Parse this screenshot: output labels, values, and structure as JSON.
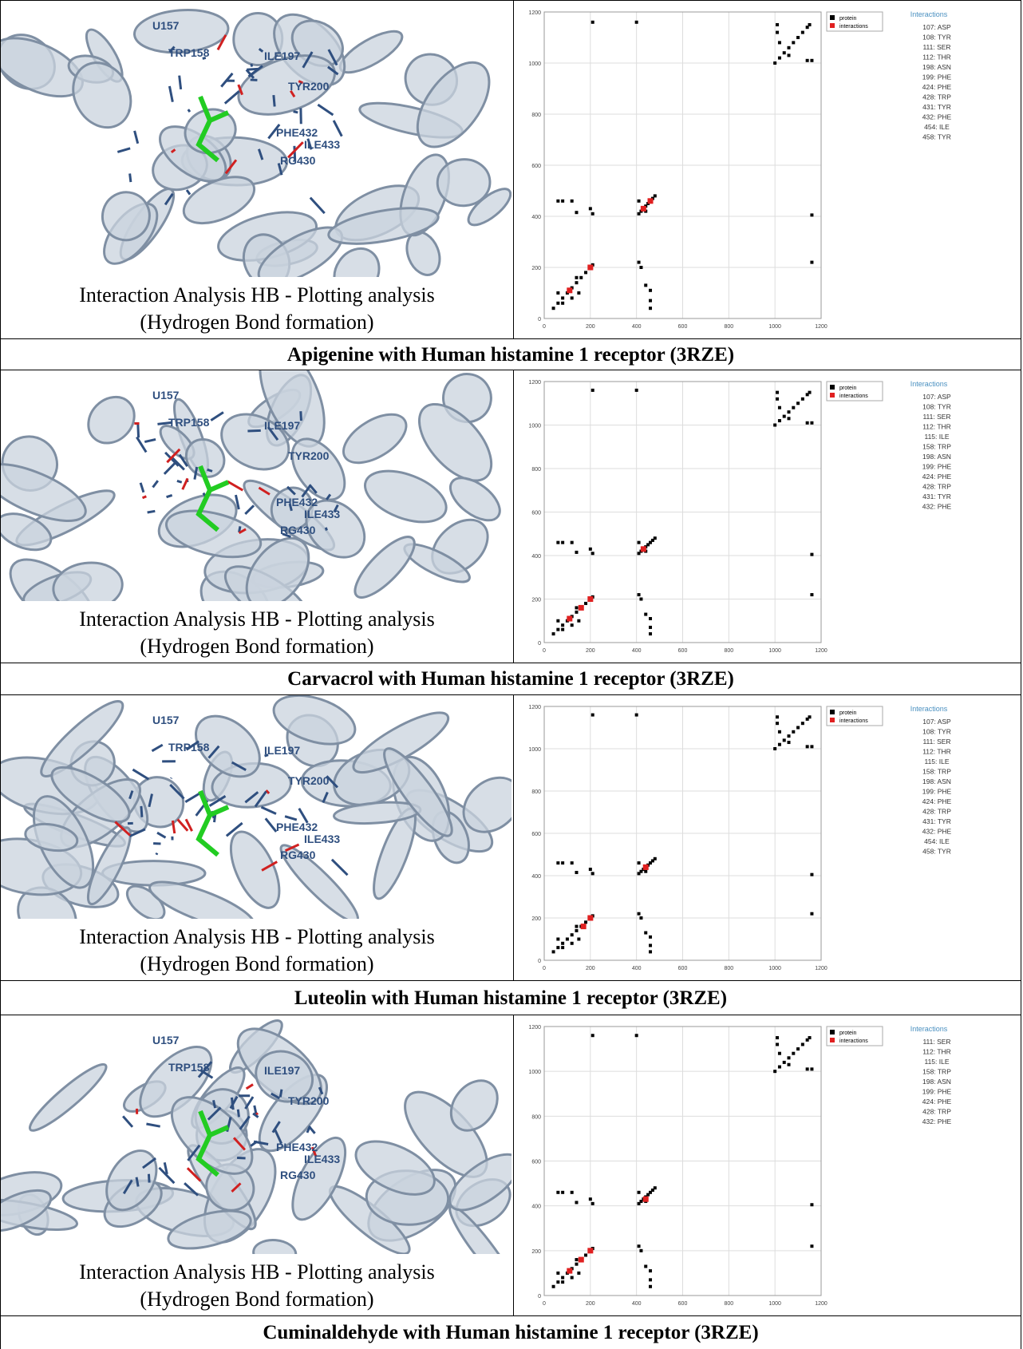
{
  "axes": {
    "xlim": [
      0,
      1200
    ],
    "ylim": [
      0,
      1200
    ],
    "xticks": [
      0,
      200,
      400,
      600,
      800,
      1000,
      1200
    ],
    "yticks": [
      0,
      200,
      400,
      600,
      800,
      1000,
      1200
    ]
  },
  "molecule_labels": [
    "U157",
    "TRP158",
    "ILE197",
    "TYR200",
    "PHE432",
    "ILE433",
    "RG430"
  ],
  "rows": [
    {
      "caption": [
        "Interaction Analysis HB - Plotting analysis",
        "(Hydrogen Bond formation)"
      ],
      "title": "Apigenine with Human histamine 1 receptor (3RZE)",
      "plot": {
        "interactions_title": "Interactions",
        "interactions": [
          "107: ASP",
          "108: TYR",
          "111: SER",
          "112: THR",
          "198: ASN",
          "199: PHE",
          "424: PHE",
          "428: TRP",
          "431: TYR",
          "432: PHE",
          "454: ILE",
          "458: TYR"
        ],
        "series": [
          {
            "name": "protein",
            "color": "#000000",
            "x": [
              40,
              60,
              80,
              100,
              120,
              140,
              160,
              180,
              200,
              210,
              60,
              80,
              120,
              140,
              150,
              410,
              420,
              430,
              440,
              450,
              460,
              470,
              480,
              1000,
              1020,
              1040,
              1060,
              1080,
              1100,
              1120,
              1140,
              1150,
              1010,
              1010,
              1140,
              1160,
              60,
              80,
              120,
              140,
              200,
              210,
              410,
              420,
              440,
              460,
              460,
              460,
              1160,
              1160,
              210,
              400,
              410,
              440,
              1020,
              1060
            ],
            "y": [
              40,
              60,
              80,
              100,
              120,
              140,
              160,
              180,
              200,
              210,
              100,
              60,
              80,
              160,
              100,
              410,
              420,
              430,
              440,
              450,
              460,
              470,
              480,
              1000,
              1020,
              1040,
              1060,
              1080,
              1100,
              1120,
              1140,
              1150,
              1150,
              1120,
              1010,
              1010,
              460,
              460,
              460,
              415,
              430,
              410,
              220,
              200,
              130,
              110,
              70,
              40,
              405,
              220,
              1160,
              1160,
              460,
              420,
              1080,
              1030
            ]
          },
          {
            "name": "interactions",
            "color": "#e02020",
            "x": [
              110,
              200,
              430,
              460
            ],
            "y": [
              110,
              200,
              430,
              460
            ]
          }
        ]
      }
    },
    {
      "caption": [
        "Interaction Analysis HB - Plotting analysis",
        "(Hydrogen Bond formation)"
      ],
      "title": "Carvacrol with Human histamine 1 receptor (3RZE)",
      "plot": {
        "interactions_title": "Interactions",
        "interactions": [
          "107: ASP",
          "108: TYR",
          "111: SER",
          "112: THR",
          "115: ILE",
          "158: TRP",
          "198: ASN",
          "199: PHE",
          "424: PHE",
          "428: TRP",
          "431: TYR",
          "432: PHE"
        ],
        "series": [
          {
            "name": "protein",
            "color": "#000000",
            "x": [
              40,
              60,
              80,
              100,
              120,
              140,
              160,
              180,
              200,
              210,
              60,
              80,
              120,
              140,
              150,
              410,
              420,
              430,
              440,
              450,
              460,
              470,
              480,
              1000,
              1020,
              1040,
              1060,
              1080,
              1100,
              1120,
              1140,
              1150,
              1010,
              1010,
              1140,
              1160,
              60,
              80,
              120,
              140,
              200,
              210,
              410,
              420,
              440,
              460,
              460,
              460,
              1160,
              1160,
              210,
              400,
              410,
              440,
              1020,
              1060
            ],
            "y": [
              40,
              60,
              80,
              100,
              120,
              140,
              160,
              180,
              200,
              210,
              100,
              60,
              80,
              160,
              100,
              410,
              420,
              430,
              440,
              450,
              460,
              470,
              480,
              1000,
              1020,
              1040,
              1060,
              1080,
              1100,
              1120,
              1140,
              1150,
              1150,
              1120,
              1010,
              1010,
              460,
              460,
              460,
              415,
              430,
              410,
              220,
              200,
              130,
              110,
              70,
              40,
              405,
              220,
              1160,
              1160,
              460,
              420,
              1080,
              1030
            ]
          },
          {
            "name": "interactions",
            "color": "#e02020",
            "x": [
              110,
              160,
              200,
              430
            ],
            "y": [
              110,
              160,
              200,
              430
            ]
          }
        ]
      }
    },
    {
      "caption": [
        "Interaction Analysis HB - Plotting analysis",
        "(Hydrogen Bond formation)"
      ],
      "title": "Luteolin with Human histamine 1 receptor (3RZE)",
      "plot": {
        "interactions_title": "Interactions",
        "interactions": [
          "107: ASP",
          "108: TYR",
          "111: SER",
          "112: THR",
          "115: ILE",
          "158: TRP",
          "198: ASN",
          "199: PHE",
          "424: PHE",
          "428: TRP",
          "431: TYR",
          "432: PHE",
          "454: ILE",
          "458: TYR"
        ],
        "series": [
          {
            "name": "protein",
            "color": "#000000",
            "x": [
              40,
              60,
              80,
              100,
              120,
              140,
              160,
              180,
              200,
              210,
              60,
              80,
              120,
              140,
              150,
              410,
              420,
              430,
              440,
              450,
              460,
              470,
              480,
              1000,
              1020,
              1040,
              1060,
              1080,
              1100,
              1120,
              1140,
              1150,
              1010,
              1010,
              1140,
              1160,
              60,
              80,
              120,
              140,
              200,
              210,
              410,
              420,
              440,
              460,
              460,
              460,
              1160,
              1160,
              210,
              400,
              410,
              440,
              1020,
              1060
            ],
            "y": [
              40,
              60,
              80,
              100,
              120,
              140,
              160,
              180,
              200,
              210,
              100,
              60,
              80,
              160,
              100,
              410,
              420,
              430,
              440,
              450,
              460,
              470,
              480,
              1000,
              1020,
              1040,
              1060,
              1080,
              1100,
              1120,
              1140,
              1150,
              1150,
              1120,
              1010,
              1010,
              460,
              460,
              460,
              415,
              430,
              410,
              220,
              200,
              130,
              110,
              70,
              40,
              405,
              220,
              1160,
              1160,
              460,
              420,
              1080,
              1030
            ]
          },
          {
            "name": "interactions",
            "color": "#e02020",
            "x": [
              170,
              200,
              440
            ],
            "y": [
              160,
              200,
              440
            ]
          }
        ]
      }
    },
    {
      "caption": [
        "Interaction Analysis HB - Plotting analysis",
        "(Hydrogen Bond formation)"
      ],
      "title": "Cuminaldehyde with Human histamine 1 receptor (3RZE)",
      "plot": {
        "interactions_title": "Interactions",
        "interactions": [
          "111: SER",
          "112: THR",
          "115: ILE",
          "158: TRP",
          "198: ASN",
          "199: PHE",
          "424: PHE",
          "428: TRP",
          "432: PHE"
        ],
        "series": [
          {
            "name": "protein",
            "color": "#000000",
            "x": [
              40,
              60,
              80,
              100,
              120,
              140,
              160,
              180,
              200,
              210,
              60,
              80,
              120,
              140,
              150,
              410,
              420,
              430,
              440,
              450,
              460,
              470,
              480,
              1000,
              1020,
              1040,
              1060,
              1080,
              1100,
              1120,
              1140,
              1150,
              1010,
              1010,
              1140,
              1160,
              60,
              80,
              120,
              140,
              200,
              210,
              410,
              420,
              440,
              460,
              460,
              460,
              1160,
              1160,
              210,
              400,
              410,
              440,
              1020,
              1060
            ],
            "y": [
              40,
              60,
              80,
              100,
              120,
              140,
              160,
              180,
              200,
              210,
              100,
              60,
              80,
              160,
              100,
              410,
              420,
              430,
              440,
              450,
              460,
              470,
              480,
              1000,
              1020,
              1040,
              1060,
              1080,
              1100,
              1120,
              1140,
              1150,
              1150,
              1120,
              1010,
              1010,
              460,
              460,
              460,
              415,
              430,
              410,
              220,
              200,
              130,
              110,
              70,
              40,
              405,
              220,
              1160,
              1160,
              460,
              420,
              1080,
              1030
            ]
          },
          {
            "name": "interactions",
            "color": "#e02020",
            "x": [
              110,
              160,
              200,
              440
            ],
            "y": [
              110,
              160,
              200,
              430
            ]
          }
        ]
      }
    }
  ]
}
